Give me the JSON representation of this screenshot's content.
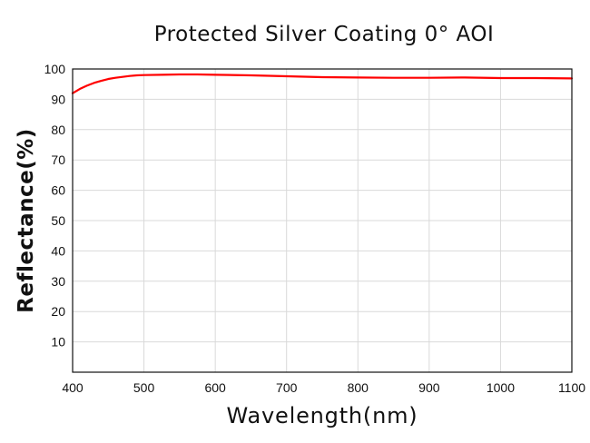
{
  "chart_data": {
    "type": "line",
    "title": "Protected Silver Coating 0° AOI",
    "xlabel": "Wavelength(nm)",
    "ylabel": "Reflectance(%)",
    "xlim": [
      400,
      1100
    ],
    "ylim": [
      0,
      100
    ],
    "x_ticks": [
      400,
      500,
      600,
      700,
      800,
      900,
      1000,
      1100
    ],
    "y_ticks": [
      10,
      20,
      30,
      40,
      50,
      60,
      70,
      80,
      90,
      100
    ],
    "grid": true,
    "legend": "none",
    "series": [
      {
        "color": "#ff0000",
        "x": [
          400,
          410,
          420,
          430,
          440,
          450,
          460,
          470,
          480,
          490,
          500,
          525,
          550,
          575,
          600,
          650,
          700,
          750,
          800,
          850,
          900,
          950,
          1000,
          1050,
          1100
        ],
        "y": [
          92.0,
          93.4,
          94.5,
          95.4,
          96.1,
          96.7,
          97.1,
          97.4,
          97.7,
          97.9,
          98.0,
          98.1,
          98.2,
          98.2,
          98.1,
          97.9,
          97.6,
          97.3,
          97.2,
          97.1,
          97.1,
          97.2,
          97.0,
          97.0,
          96.9
        ]
      }
    ]
  }
}
